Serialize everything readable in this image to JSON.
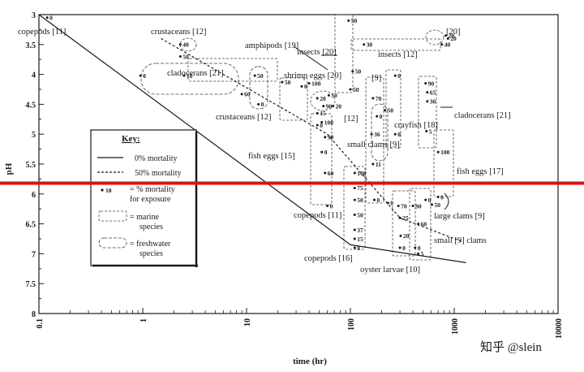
{
  "chart_data": {
    "type": "scatter",
    "xlabel": "time (hr)",
    "ylabel": "pH",
    "x_scale": "log",
    "xlim": [
      0.1,
      10000
    ],
    "ylim": [
      3,
      8
    ],
    "y_inverted": true,
    "x_ticks": [
      "0.1",
      "1",
      "10",
      "100",
      "1000",
      "10000"
    ],
    "y_ticks": [
      "3",
      "3.5",
      "4",
      "4.5",
      "5",
      "5.5",
      "6",
      "6.5",
      "7",
      "7.5",
      "8"
    ],
    "grid": false,
    "lines": [
      {
        "name": "0% mortality",
        "style": "solid",
        "points": [
          [
            0.1,
            3.0
          ],
          [
            100,
            6.85
          ],
          [
            1300,
            7.15
          ]
        ]
      },
      {
        "name": "50% mortality",
        "style": "dashed",
        "points": [
          [
            1.5,
            3.4
          ],
          [
            60,
            5.0
          ],
          [
            300,
            6.4
          ],
          [
            1200,
            6.8
          ]
        ]
      }
    ],
    "reference_line": {
      "y": 5.82,
      "color": "#dd1111"
    },
    "points": [
      {
        "x": 0.12,
        "y": 3.05,
        "label": "0"
      },
      {
        "x": 2.3,
        "y": 3.5,
        "label": "40"
      },
      {
        "x": 2.3,
        "y": 3.7,
        "label": "50"
      },
      {
        "x": 0.95,
        "y": 4.02,
        "label": "0"
      },
      {
        "x": 2.5,
        "y": 4.02,
        "label": "10"
      },
      {
        "x": 12,
        "y": 4.02,
        "label": "50"
      },
      {
        "x": 13,
        "y": 4.5,
        "label": "0"
      },
      {
        "x": 9,
        "y": 4.33,
        "label": "60"
      },
      {
        "x": 22,
        "y": 4.13,
        "label": "50"
      },
      {
        "x": 34,
        "y": 4.2,
        "label": "0"
      },
      {
        "x": 40,
        "y": 4.15,
        "label": "100"
      },
      {
        "x": 48,
        "y": 4.4,
        "label": "20"
      },
      {
        "x": 48,
        "y": 4.65,
        "label": "15"
      },
      {
        "x": 48,
        "y": 4.85,
        "label": "0"
      },
      {
        "x": 55,
        "y": 4.53,
        "label": "90"
      },
      {
        "x": 68,
        "y": 4.53,
        "label": "20"
      },
      {
        "x": 62,
        "y": 4.35,
        "label": "50"
      },
      {
        "x": 96,
        "y": 3.1,
        "label": "50"
      },
      {
        "x": 135,
        "y": 3.5,
        "label": "30"
      },
      {
        "x": 100,
        "y": 4.25,
        "label": "50"
      },
      {
        "x": 105,
        "y": 3.95,
        "label": "50"
      },
      {
        "x": 53,
        "y": 4.8,
        "label": "100"
      },
      {
        "x": 57,
        "y": 5.05,
        "label": "90"
      },
      {
        "x": 53,
        "y": 5.3,
        "label": "0"
      },
      {
        "x": 57,
        "y": 5.65,
        "label": "60"
      },
      {
        "x": 60,
        "y": 6.2,
        "label": "0"
      },
      {
        "x": 110,
        "y": 5.65,
        "label": "100"
      },
      {
        "x": 110,
        "y": 5.9,
        "label": "75"
      },
      {
        "x": 110,
        "y": 6.1,
        "label": "50"
      },
      {
        "x": 110,
        "y": 6.35,
        "label": "50"
      },
      {
        "x": 110,
        "y": 6.6,
        "label": "37"
      },
      {
        "x": 110,
        "y": 6.75,
        "label": "15"
      },
      {
        "x": 110,
        "y": 6.9,
        "label": "0"
      },
      {
        "x": 165,
        "y": 4.4,
        "label": "70"
      },
      {
        "x": 180,
        "y": 4.7,
        "label": "0"
      },
      {
        "x": 160,
        "y": 5.0,
        "label": "36"
      },
      {
        "x": 165,
        "y": 5.5,
        "label": "11"
      },
      {
        "x": 170,
        "y": 6.1,
        "label": "0"
      },
      {
        "x": 215,
        "y": 4.6,
        "label": "50"
      },
      {
        "x": 270,
        "y": 4.02,
        "label": "0"
      },
      {
        "x": 270,
        "y": 5.0,
        "label": "0"
      },
      {
        "x": 230,
        "y": 6.15,
        "label": "0"
      },
      {
        "x": 290,
        "y": 6.2,
        "label": "70"
      },
      {
        "x": 300,
        "y": 6.4,
        "label": "25"
      },
      {
        "x": 305,
        "y": 6.7,
        "label": "20"
      },
      {
        "x": 300,
        "y": 6.9,
        "label": "0"
      },
      {
        "x": 400,
        "y": 6.2,
        "label": "90"
      },
      {
        "x": 450,
        "y": 6.5,
        "label": "60"
      },
      {
        "x": 420,
        "y": 6.9,
        "label": "0"
      },
      {
        "x": 450,
        "y": 7.0,
        "label": "5"
      },
      {
        "x": 530,
        "y": 4.15,
        "label": "90"
      },
      {
        "x": 550,
        "y": 4.3,
        "label": "65"
      },
      {
        "x": 550,
        "y": 4.45,
        "label": "30"
      },
      {
        "x": 540,
        "y": 4.95,
        "label": "5"
      },
      {
        "x": 700,
        "y": 5.3,
        "label": "100"
      },
      {
        "x": 700,
        "y": 6.05,
        "label": "0"
      },
      {
        "x": 530,
        "y": 6.1,
        "label": "0"
      },
      {
        "x": 610,
        "y": 6.18,
        "label": "50"
      },
      {
        "x": 830,
        "y": 3.35,
        "label": "20"
      },
      {
        "x": 870,
        "y": 3.4,
        "label": "20"
      },
      {
        "x": 760,
        "y": 3.5,
        "label": "40"
      }
    ],
    "species_labels": [
      "copepods [11]",
      "crustaceans [12]",
      "amphipods [19]",
      "insects [20]",
      "insects [12]",
      "[20]",
      "cladocerans [21]",
      "shrimp eggs [20]",
      "[9]",
      "crustaceans [12]",
      "[12]",
      "crayfish [18]",
      "cladocerans [21]",
      "small clams [9]",
      "fish eggs [15]",
      "fish eggs [17]",
      "copepods [11]",
      "large clams [9]",
      "small [9] clams",
      "copepods [16]",
      "oyster larvae [10]"
    ]
  },
  "key": {
    "title": "Key:",
    "zero_mortality": "0% mortality",
    "fifty_mortality": "50% mortality",
    "marker_value": "18",
    "marker_line1": "= % mortality",
    "marker_line2": "for exposure",
    "marine_line1": "= marine",
    "marine_line2": "species",
    "freshwater_line1": "= freshwater",
    "freshwater_line2": "species"
  },
  "watermark": "知乎 @slein",
  "colors": {
    "reference_line": "#dd1111",
    "ink": "#1a1a1a"
  }
}
